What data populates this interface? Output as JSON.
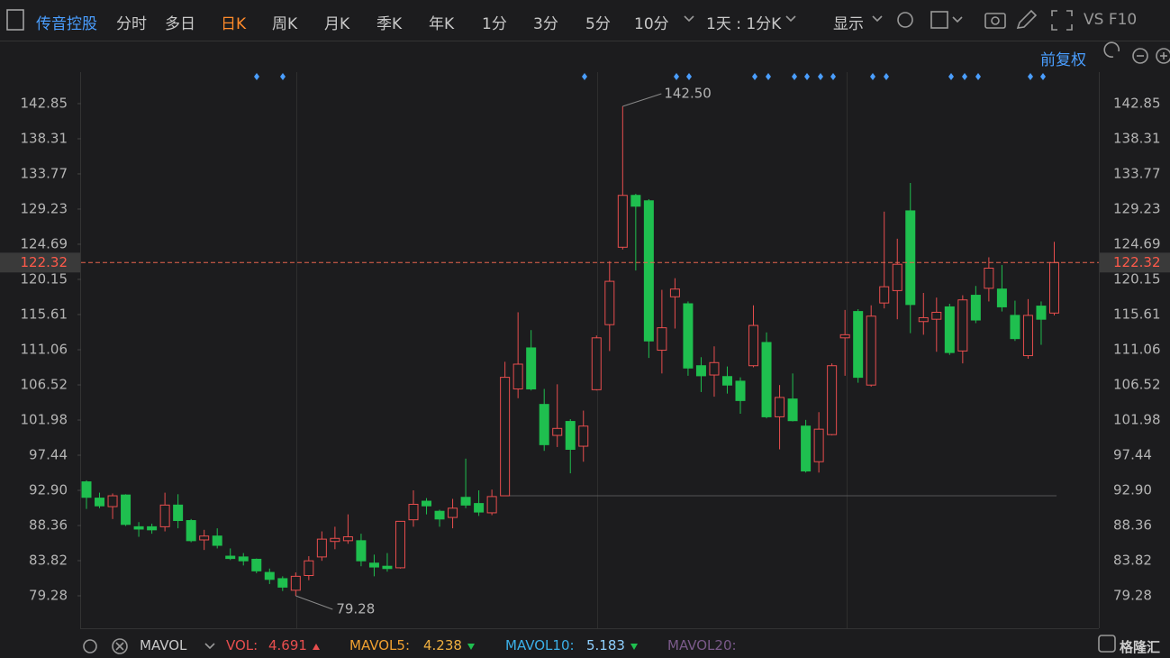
{
  "toolbar": {
    "stock": "传音控股",
    "periods": [
      "分时",
      "多日",
      "日K",
      "周K",
      "月K",
      "季K",
      "年K",
      "1分",
      "3分",
      "5分",
      "10分"
    ],
    "interval": "1天 : 1分K",
    "display": "显示",
    "vs_f10": "VS F10"
  },
  "adjust": "前复权",
  "chart_data": {
    "type": "candlestick",
    "up_color": "#e84e4e",
    "down_color": "#1fbf4f",
    "open": [
      94.0,
      91.9,
      90.8,
      92.3,
      88.2,
      88.2,
      88.2,
      91.0,
      89.0,
      86.5,
      87.0,
      84.4,
      84.3,
      84.0,
      82.3,
      81.5,
      80.0,
      81.9,
      84.3,
      86.3,
      86.4,
      86.4,
      83.5,
      83.1,
      82.9,
      89.1,
      91.5,
      90.2,
      89.4,
      92.0,
      91.2,
      90.0,
      92.2,
      106.0,
      111.3,
      104.0,
      100.0,
      101.8,
      98.6,
      105.9,
      114.3,
      124.3,
      131.0,
      130.3,
      111.0,
      117.9,
      117.0,
      109.0,
      107.8,
      107.6,
      107.0,
      109.0,
      112.0,
      102.4,
      104.7,
      101.2,
      96.6,
      100.1,
      112.6,
      116.0,
      106.5,
      117.1,
      118.7,
      129.0,
      114.7,
      115.0,
      116.6,
      110.9,
      118.1,
      119.0,
      118.9,
      115.5,
      110.3,
      116.7,
      115.8
    ],
    "high": [
      94.2,
      92.6,
      92.5,
      92.4,
      88.8,
      88.6,
      92.6,
      92.4,
      89.2,
      87.8,
      88.0,
      85.4,
      84.8,
      84.1,
      82.8,
      81.8,
      82.3,
      84.4,
      87.6,
      88.2,
      89.8,
      87.3,
      84.6,
      84.8,
      88.9,
      92.9,
      91.9,
      90.4,
      91.8,
      97.0,
      92.9,
      93.0,
      109.5,
      115.9,
      113.6,
      106.0,
      106.6,
      102.1,
      103.2,
      112.9,
      122.5,
      142.5,
      131.2,
      130.5,
      118.8,
      120.3,
      117.3,
      110.1,
      111.5,
      108.9,
      107.5,
      116.8,
      113.3,
      106.5,
      108.0,
      102.0,
      103.0,
      109.3,
      116.2,
      116.3,
      116.8,
      128.9,
      125.4,
      132.6,
      118.4,
      117.8,
      117.0,
      118.1,
      119.3,
      123.0,
      122.0,
      117.4,
      117.6,
      117.3,
      125.0
    ],
    "low": [
      90.5,
      90.6,
      89.2,
      88.3,
      86.9,
      87.3,
      87.6,
      88.0,
      86.2,
      85.2,
      85.4,
      83.9,
      83.2,
      82.2,
      80.8,
      79.9,
      79.28,
      81.3,
      83.8,
      85.3,
      86.0,
      83.1,
      81.8,
      82.4,
      82.8,
      88.2,
      89.8,
      88.2,
      88.0,
      90.6,
      89.6,
      89.7,
      92.2,
      104.8,
      105.8,
      98.0,
      98.5,
      95.1,
      96.6,
      105.8,
      110.9,
      124.0,
      121.3,
      110.0,
      108.0,
      113.8,
      107.7,
      105.6,
      105.0,
      105.4,
      102.8,
      108.8,
      102.2,
      98.2,
      101.8,
      95.2,
      95.2,
      100.0,
      107.7,
      106.8,
      106.3,
      116.4,
      115.0,
      113.2,
      113.0,
      110.8,
      110.4,
      109.3,
      114.5,
      117.3,
      116.0,
      112.2,
      109.9,
      111.7,
      115.5
    ],
    "close": [
      92.0,
      90.9,
      92.2,
      88.5,
      87.9,
      87.8,
      91.0,
      89.0,
      86.4,
      87.0,
      85.8,
      84.1,
      83.8,
      82.5,
      81.4,
      80.4,
      81.8,
      83.8,
      86.6,
      86.7,
      86.9,
      83.8,
      83.0,
      82.8,
      88.9,
      91.1,
      90.9,
      89.2,
      90.6,
      91.0,
      90.1,
      92.1,
      107.5,
      109.2,
      106.0,
      98.8,
      100.9,
      98.2,
      101.2,
      112.6,
      119.9,
      131.0,
      129.6,
      112.2,
      113.9,
      118.9,
      108.7,
      107.7,
      109.4,
      106.5,
      104.5,
      114.2,
      102.4,
      104.9,
      101.9,
      95.4,
      100.8,
      109.0,
      113.0,
      107.5,
      115.4,
      119.2,
      122.1,
      116.9,
      115.2,
      115.9,
      110.7,
      117.5,
      114.9,
      121.6,
      116.6,
      112.5,
      115.5,
      115.0,
      122.32
    ],
    "ylim": [
      75.09,
      146.92
    ],
    "yticks": [
      142.85,
      138.31,
      133.77,
      129.23,
      124.69,
      120.15,
      115.61,
      111.06,
      106.52,
      101.98,
      97.44,
      {
        "value": 92.9,
        "label": "92.90"
      },
      88.36,
      83.82,
      79.28
    ],
    "last_price": {
      "value": 122.32,
      "label": "122.32"
    },
    "annotations": {
      "high": "142.50",
      "low": "79.28"
    }
  },
  "indicators": {
    "name": "MAVOL",
    "items": [
      {
        "label": "VOL:",
        "value": 4.691,
        "color": "#e84e4e",
        "value_color": "#e84e4e",
        "trend": "up"
      },
      {
        "label": "MAVOL5:",
        "value": 4.238,
        "color": "#f0a030",
        "value_color": "#f0b040",
        "trend": "down"
      },
      {
        "label": "MAVOL10:",
        "value": 5.183,
        "color": "#3bb0e8",
        "value_color": "#8fd0ff",
        "trend": "down"
      },
      {
        "label": "MAVOL20:",
        "color": "#7a5a8a"
      }
    ]
  },
  "watermark": "格隆汇"
}
